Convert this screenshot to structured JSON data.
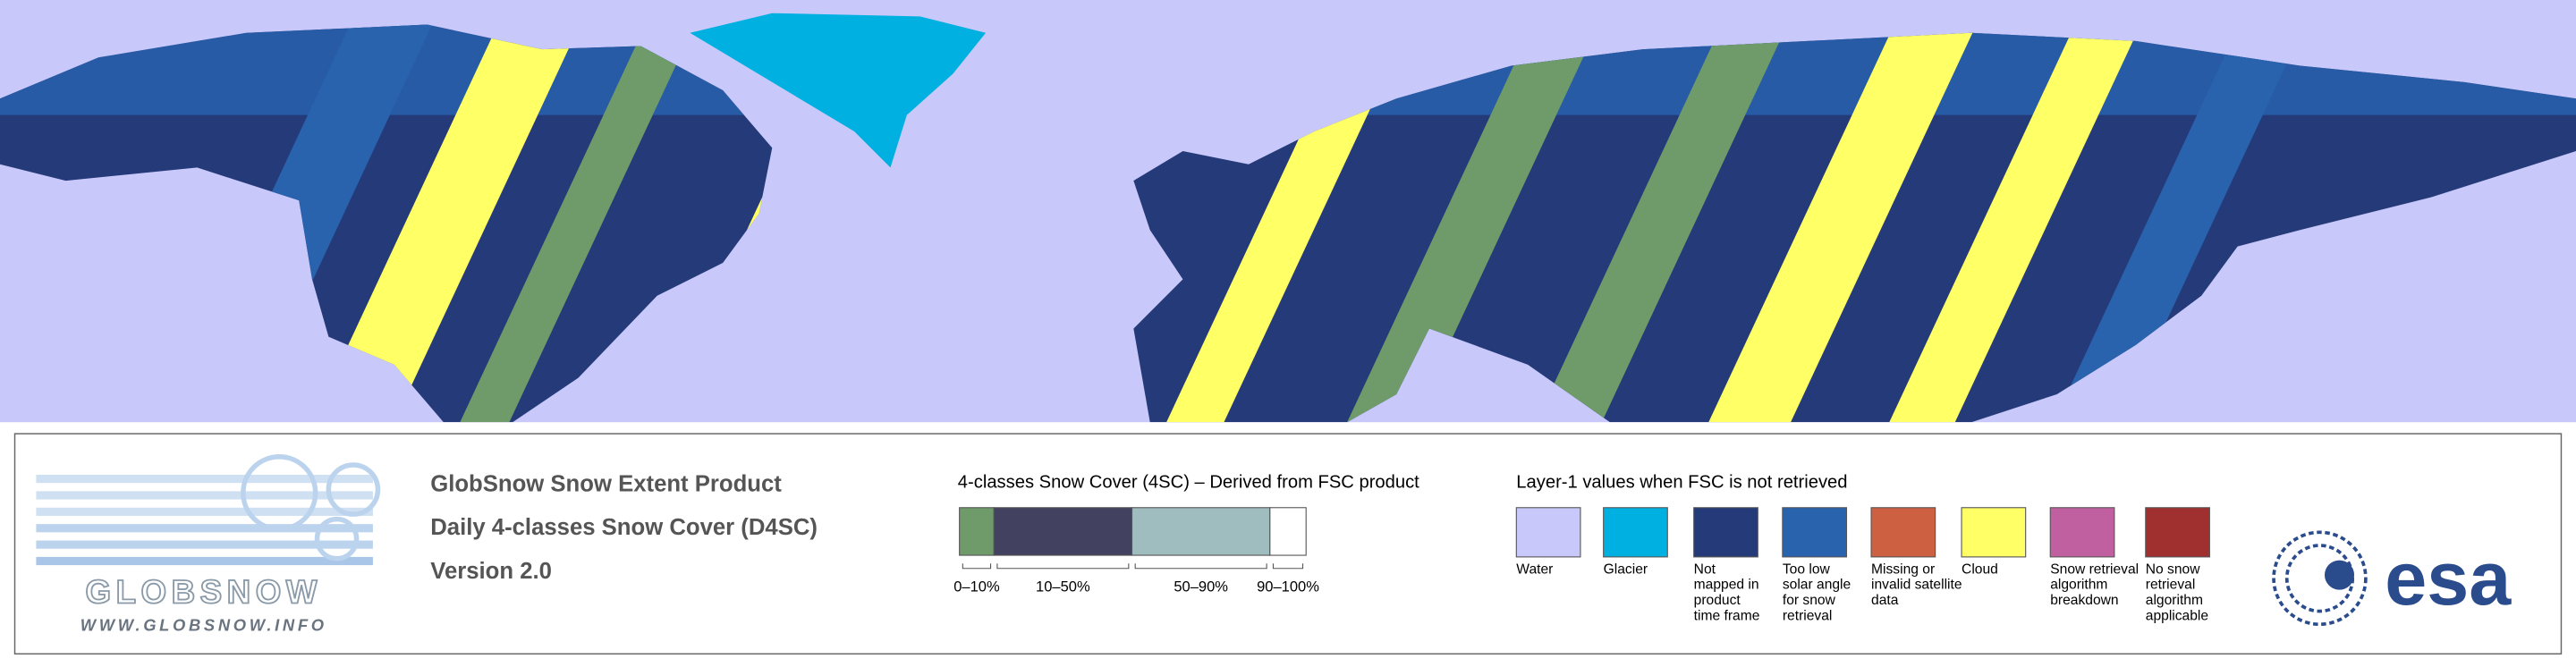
{
  "logo": {
    "name": "GLOBSNOW",
    "url": "WWW.GLOBSNOW.INFO"
  },
  "product": {
    "lines": [
      "GlobSnow Snow Extent Product",
      "Daily 4-classes Snow Cover (D4SC)",
      "Version 2.0"
    ]
  },
  "legend_4sc": {
    "title": "4-classes Snow Cover (4SC) – Derived from FSC product",
    "classes": [
      {
        "label": "0–10%",
        "color": "#6f9a6a"
      },
      {
        "label": "10–50%",
        "color": "#434160"
      },
      {
        "label": "50–90%",
        "color": "#9fbcbf"
      },
      {
        "label": "90–100%",
        "color": "#ffffff"
      }
    ]
  },
  "legend_layer1": {
    "title": "Layer-1 values when FSC is not retrieved",
    "items": [
      {
        "label": [
          "Water"
        ],
        "color": "#c8c8fa"
      },
      {
        "label": [
          "Glacier"
        ],
        "color": "#00b0e0"
      },
      {
        "label": [
          "Not",
          "mapped in",
          "product",
          "time frame"
        ],
        "color": "#253a78"
      },
      {
        "label": [
          "Too low",
          "solar angle",
          "for snow",
          "retrieval"
        ],
        "color": "#2962ad"
      },
      {
        "label": [
          "Missing or",
          "invalid satellite",
          "data"
        ],
        "color": "#cd6040"
      },
      {
        "label": [
          "Cloud"
        ],
        "color": "#ffff66"
      },
      {
        "label": [
          "Snow retrieval",
          "algorithm",
          "breakdown"
        ],
        "color": "#c060a0"
      },
      {
        "label": [
          "No snow",
          "retrieval",
          "algorithm",
          "applicable"
        ],
        "color": "#a03030"
      }
    ]
  },
  "agency": {
    "name": "esa"
  }
}
